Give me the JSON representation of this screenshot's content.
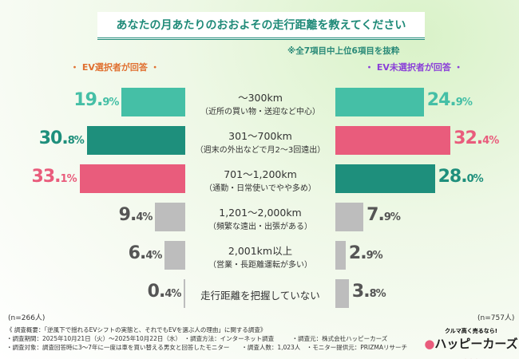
{
  "title": "あなたの月あたりのおおよその走行距離を教えてください",
  "note": "※全7項目中上位6項目を抜粋",
  "chart_data": {
    "type": "bar",
    "title": "あなたの月あたりのおおよその走行距離を教えてください",
    "categories": [
      {
        "main": "〜300km",
        "sub": "（近所の買い物・送迎など中心）"
      },
      {
        "main": "301〜700km",
        "sub": "（週末の外出などで月2〜3回遠出）"
      },
      {
        "main": "701〜1,200km",
        "sub": "（通勤・日常使いでやや多め）"
      },
      {
        "main": "1,201〜2,000km",
        "sub": "（頻繁な遠出・出張がある）"
      },
      {
        "main": "2,001km以上",
        "sub": "（営業・長距離運転が多い）"
      },
      {
        "main": "走行距離を把握していない",
        "sub": ""
      }
    ],
    "unit": "%",
    "series": [
      {
        "name": "・ EV選択者が回答 ・",
        "n": "(n=266人)",
        "values": [
          19.9,
          30.8,
          33.1,
          9.4,
          6.4,
          0.4
        ],
        "colors": [
          "#45bfa6",
          "#1e8f7c",
          "#e95c7c",
          "#bdbdbd",
          "#bdbdbd",
          "#bdbdbd"
        ],
        "label_color": "#e07030"
      },
      {
        "name": "・ EV未選択者が回答 ・",
        "n": "(n=757人)",
        "values": [
          24.9,
          32.4,
          28.0,
          7.9,
          2.9,
          3.8
        ],
        "colors": [
          "#45bfa6",
          "#e95c7c",
          "#1e8f7c",
          "#bdbdbd",
          "#bdbdbd",
          "#bdbdbd"
        ],
        "label_color": "#8a3fd8"
      }
    ]
  },
  "footer": [
    "《 調査概要：「逆風下で揺れるEVシフトの実態と、それでもEVを選ぶ人の理由」に関する調査》",
    "・調査期間：2025年10月21日（火）〜2025年10月22日（水）　・調査方法：インターネット調査　　　・調査元：株式会社ハッピーカーズ",
    "・調査対象：調査回答時に3〜7年に一度は車を買い替える男女と回答したモニター　　・調査人数：1,023人　・モニター提供元：PRIZMAリサーチ"
  ],
  "logo": {
    "tagline": "クルマ高く売るなら!",
    "name": "ハッピーカーズ"
  }
}
